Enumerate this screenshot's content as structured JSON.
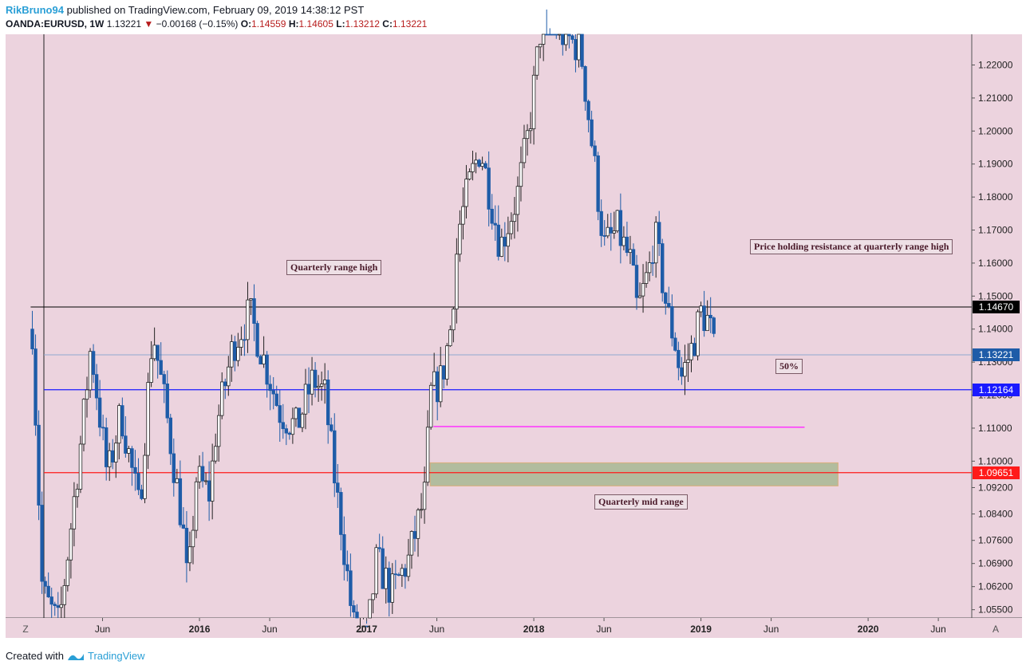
{
  "header": {
    "author": "RikBruno94",
    "published": "published on TradingView.com, February 09, 2019 14:38:12 PST",
    "symbol": "OANDA:EURUSD, 1W",
    "last": "1.13221",
    "change": "−0.00168 (−0.15%)",
    "o_label": "O:",
    "o_val": "1.14559",
    "h_label": "H:",
    "h_val": "1.14605",
    "l_label": "L:",
    "l_val": "1.13212",
    "c_label": "C:",
    "c_val": "1.13221"
  },
  "footer": {
    "created": "Created with",
    "brand": "TradingView"
  },
  "controls": {
    "z_button": "Z",
    "a_button": "A"
  },
  "colors": {
    "background": "#ecd3de",
    "up_candle": "#ffffff",
    "down_candle": "#1e5ca8",
    "wick": "#222222",
    "resistance": "#000000",
    "fifty_line": "#1a1aff",
    "mid_line": "#ff1a1a",
    "magenta": "#ff33ff",
    "zone": "#a8b894"
  },
  "chart_data": {
    "type": "candlestick",
    "title": "OANDA:EURUSD, 1W",
    "xlabel": "",
    "ylabel": "",
    "ylim": [
      1.0525,
      1.2293
    ],
    "y_ticks": [
      "1.22000",
      "1.21000",
      "1.20000",
      "1.19000",
      "1.18000",
      "1.17000",
      "1.16000",
      "1.15000",
      "1.14000",
      "1.13000",
      "1.12000",
      "1.11000",
      "1.10000",
      "1.09200",
      "1.08400",
      "1.07600",
      "1.06900",
      "1.06200",
      "1.05500"
    ],
    "y_tick_values": [
      1.22,
      1.21,
      1.2,
      1.19,
      1.18,
      1.17,
      1.16,
      1.15,
      1.14,
      1.13,
      1.12,
      1.11,
      1.1,
      1.092,
      1.084,
      1.076,
      1.069,
      1.062,
      1.055
    ],
    "x_ticks": [
      {
        "label": "Jun",
        "t": 2015.42,
        "bold": false
      },
      {
        "label": "2016",
        "t": 2016.0,
        "bold": true
      },
      {
        "label": "Jun",
        "t": 2016.42,
        "bold": false
      },
      {
        "label": "2017",
        "t": 2017.0,
        "bold": true
      },
      {
        "label": "Jun",
        "t": 2017.42,
        "bold": false
      },
      {
        "label": "2018",
        "t": 2018.0,
        "bold": true
      },
      {
        "label": "Jun",
        "t": 2018.42,
        "bold": false
      },
      {
        "label": "2019",
        "t": 2019.0,
        "bold": true
      },
      {
        "label": "Jun",
        "t": 2019.42,
        "bold": false
      },
      {
        "label": "2020",
        "t": 2020.0,
        "bold": true
      },
      {
        "label": "Jun",
        "t": 2020.42,
        "bold": false
      }
    ],
    "xlim": [
      2014.84,
      2020.62
    ],
    "anchors": [
      [
        2015.0,
        1.14
      ],
      [
        2015.06,
        1.06
      ],
      [
        2015.16,
        1.05
      ],
      [
        2015.3,
        1.11
      ],
      [
        2015.35,
        1.135
      ],
      [
        2015.45,
        1.095
      ],
      [
        2015.53,
        1.115
      ],
      [
        2015.64,
        1.085
      ],
      [
        2015.72,
        1.14
      ],
      [
        2015.8,
        1.115
      ],
      [
        2015.9,
        1.08
      ],
      [
        2015.93,
        1.06
      ],
      [
        2015.98,
        1.095
      ],
      [
        2016.06,
        1.09
      ],
      [
        2016.1,
        1.11
      ],
      [
        2016.2,
        1.135
      ],
      [
        2016.3,
        1.145
      ],
      [
        2016.42,
        1.125
      ],
      [
        2016.48,
        1.115
      ],
      [
        2016.58,
        1.11
      ],
      [
        2016.68,
        1.125
      ],
      [
        2016.75,
        1.12
      ],
      [
        2016.82,
        1.09
      ],
      [
        2016.85,
        1.08
      ],
      [
        2016.92,
        1.05
      ],
      [
        2017.0,
        1.045
      ],
      [
        2017.06,
        1.07
      ],
      [
        2017.15,
        1.06
      ],
      [
        2017.25,
        1.07
      ],
      [
        2017.3,
        1.08
      ],
      [
        2017.35,
        1.09
      ],
      [
        2017.38,
        1.12
      ],
      [
        2017.45,
        1.125
      ],
      [
        2017.5,
        1.14
      ],
      [
        2017.55,
        1.17
      ],
      [
        2017.62,
        1.185
      ],
      [
        2017.68,
        1.195
      ],
      [
        2017.8,
        1.165
      ],
      [
        2017.9,
        1.18
      ],
      [
        2017.97,
        1.2
      ],
      [
        2018.05,
        1.235
      ],
      [
        2018.15,
        1.23
      ],
      [
        2018.28,
        1.225
      ],
      [
        2018.35,
        1.195
      ],
      [
        2018.42,
        1.165
      ],
      [
        2018.5,
        1.17
      ],
      [
        2018.58,
        1.16
      ],
      [
        2018.62,
        1.145
      ],
      [
        2018.7,
        1.16
      ],
      [
        2018.72,
        1.17
      ],
      [
        2018.8,
        1.145
      ],
      [
        2018.85,
        1.135
      ],
      [
        2018.88,
        1.125
      ],
      [
        2018.95,
        1.135
      ],
      [
        2019.0,
        1.145
      ],
      [
        2019.05,
        1.142
      ],
      [
        2019.08,
        1.1322
      ]
    ]
  },
  "annotations": {
    "quarterly_high_label": "Quarterly range high",
    "price_holding_label": "Price holding resistance at quarterly range high",
    "fifty_label": "50%",
    "mid_range_label": "Quarterly mid range"
  },
  "levels": {
    "resistance": {
      "value": 1.1467,
      "label": "1.14670",
      "tag_color": "#000000"
    },
    "current": {
      "value": 1.13221,
      "label": "1.13221",
      "tag_color": "#1e5ca8"
    },
    "fifty": {
      "value": 1.12164,
      "label": "1.12164",
      "tag_color": "#1a1aff"
    },
    "mid": {
      "value": 1.09651,
      "label": "1.09651",
      "tag_color": "#ff1a1a"
    },
    "magenta_value": 1.1105,
    "zone_top": 1.0995,
    "zone_bottom": 1.0925
  }
}
